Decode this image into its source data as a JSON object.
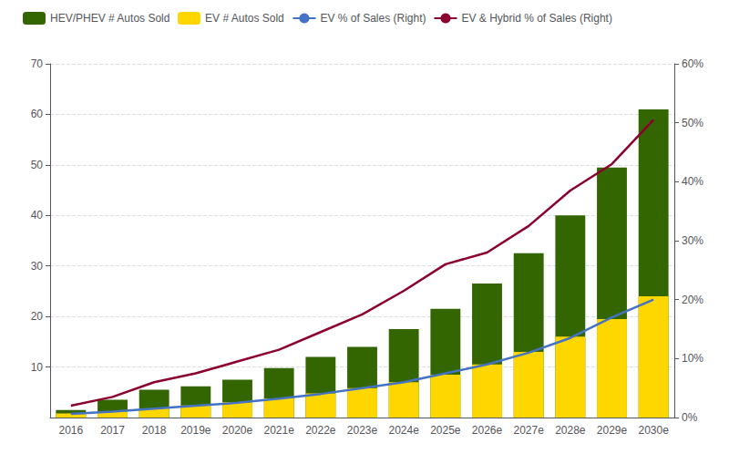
{
  "chart_data": {
    "type": "bar",
    "categories": [
      "2016",
      "2017",
      "2018",
      "2019e",
      "2020e",
      "2021e",
      "2022e",
      "2023e",
      "2024e",
      "2025e",
      "2026e",
      "2027e",
      "2028e",
      "2029e",
      "2030e"
    ],
    "series": [
      {
        "name": "HEV/PHEV # Autos Sold",
        "type": "bar",
        "color": "#336600",
        "values": [
          1.5,
          3.5,
          5.5,
          6.2,
          7.5,
          9.8,
          12.0,
          14.0,
          17.5,
          21.5,
          26.5,
          32.5,
          40.0,
          49.5,
          61.0
        ]
      },
      {
        "name": "EV # Autos Sold",
        "type": "bar",
        "color": "#FFD700",
        "values": [
          0.8,
          1.2,
          1.8,
          2.4,
          3.0,
          3.8,
          4.8,
          5.8,
          7.0,
          8.5,
          10.5,
          13.0,
          16.0,
          19.5,
          24.0
        ]
      },
      {
        "name": "EV % of Sales (Right)",
        "type": "line",
        "axis": "y2",
        "color": "#4472C4",
        "values": [
          0.6,
          1.0,
          1.5,
          2.0,
          2.5,
          3.2,
          4.0,
          5.0,
          6.0,
          7.5,
          9.0,
          11.0,
          13.5,
          17.0,
          20.0
        ]
      },
      {
        "name": "EV & Hybrid % of Sales (Right)",
        "type": "line",
        "axis": "y2",
        "color": "#8B0030",
        "values": [
          2.0,
          3.5,
          6.0,
          7.5,
          9.5,
          11.5,
          14.5,
          17.5,
          21.5,
          26.0,
          28.0,
          32.5,
          38.5,
          43.0,
          50.5
        ]
      }
    ],
    "ylim": [
      0,
      70
    ],
    "yticks": [
      10,
      20,
      30,
      40,
      50,
      60,
      70
    ],
    "y2lim": [
      0,
      60
    ],
    "y2ticks": [
      {
        "value": 0,
        "label": "0%"
      },
      {
        "value": 10,
        "label": "10%"
      },
      {
        "value": 20,
        "label": "20%"
      },
      {
        "value": 30,
        "label": "30%"
      },
      {
        "value": 40,
        "label": "40%"
      },
      {
        "value": 50,
        "label": "50%"
      },
      {
        "value": 60,
        "label": "60%"
      }
    ],
    "grid": true,
    "legend": "upper left"
  }
}
